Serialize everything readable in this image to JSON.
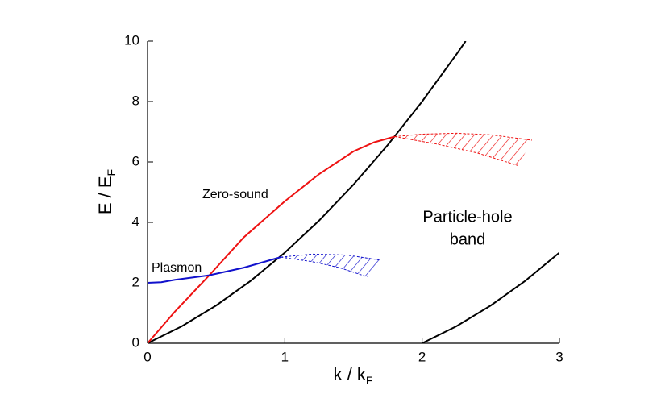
{
  "chart_data": {
    "type": "line",
    "xlabel": {
      "text": "k / k",
      "sub": "F"
    },
    "ylabel": {
      "text": "E / E",
      "sub": "F"
    },
    "xlim": [
      0,
      3
    ],
    "xticks": [
      0,
      1,
      2,
      3
    ],
    "ylim": [
      0,
      10
    ],
    "yticks": [
      0,
      2,
      4,
      6,
      8,
      10
    ],
    "annotations": [
      "Zero-sound",
      "Plasmon",
      "Particle-hole",
      "band"
    ],
    "series": [
      {
        "color": "#000000",
        "dash": false,
        "x": [
          0,
          0.25,
          0.5,
          0.75,
          1,
          1.25,
          1.5,
          1.75,
          2,
          2.25,
          2.317
        ],
        "values": [
          0,
          0.5625,
          1.25,
          2.0625,
          3,
          4.0625,
          5.25,
          6.5625,
          8,
          9.5625,
          10.0
        ]
      },
      {
        "color": "#000000",
        "dash": false,
        "x": [
          2,
          2.25,
          2.5,
          2.75,
          3
        ],
        "values": [
          0,
          0.5625,
          1.25,
          2.0625,
          3
        ]
      },
      {
        "color": "#ee1111",
        "dash": false,
        "x": [
          0,
          0.2,
          0.45,
          0.7,
          1,
          1.25,
          1.5,
          1.65,
          1.8
        ],
        "values": [
          0,
          1.05,
          2.25,
          3.5,
          4.7,
          5.6,
          6.35,
          6.65,
          6.84
        ]
      },
      {
        "color": "#1111cc",
        "dash": false,
        "x": [
          0,
          0.1,
          0.2,
          0.45,
          0.7,
          0.97
        ],
        "values": [
          2,
          2.02,
          2.1,
          2.25,
          2.5,
          2.85
        ]
      },
      {
        "color": "#ee1111",
        "dash": true,
        "x": [
          1.8,
          2,
          2.25,
          2.5,
          2.8
        ],
        "values": [
          6.84,
          6.92,
          6.95,
          6.9,
          6.72
        ]
      },
      {
        "color": "#ee1111",
        "dash": true,
        "x": [
          1.8,
          2.1,
          2.4,
          2.7
        ],
        "values": [
          6.84,
          6.6,
          6.3,
          5.88
        ]
      },
      {
        "color": "#1111cc",
        "dash": true,
        "x": [
          0.97,
          1.2,
          1.45,
          1.7
        ],
        "values": [
          2.85,
          2.95,
          2.92,
          2.75
        ]
      },
      {
        "color": "#1111cc",
        "dash": true,
        "x": [
          0.97,
          1.2,
          1.4,
          1.6
        ],
        "values": [
          2.85,
          2.7,
          2.5,
          2.2
        ]
      }
    ]
  }
}
